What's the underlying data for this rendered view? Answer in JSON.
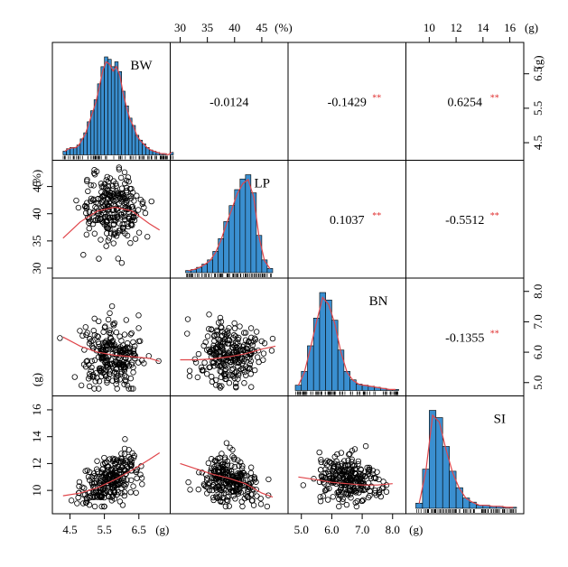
{
  "chart_data": {
    "type": "scatter-matrix",
    "variables": [
      {
        "name": "BW",
        "unit": "(g)",
        "ticks": [
          "4.5",
          "5.5",
          "6.5"
        ],
        "range": [
          4.2,
          7.2
        ],
        "hist": {
          "start": 4.3,
          "width": 0.1,
          "heights": [
            3,
            5,
            6,
            6,
            8,
            13,
            18,
            27,
            36,
            45,
            58,
            72,
            80,
            78,
            72,
            76,
            68,
            52,
            40,
            30,
            24,
            16,
            12,
            9,
            6,
            4,
            3,
            2,
            1,
            1,
            0,
            2
          ]
        }
      },
      {
        "name": "LP",
        "unit": "(%)",
        "ticks": [
          "30",
          "35",
          "40",
          "45"
        ],
        "range": [
          29.5,
          48.5
        ],
        "hist": {
          "start": 31,
          "width": 1,
          "heights": [
            2,
            3,
            5,
            8,
            12,
            20,
            32,
            48,
            63,
            78,
            88,
            92,
            75,
            35,
            12,
            4
          ]
        }
      },
      {
        "name": "BN",
        "unit": "(g)",
        "ticks": [
          "5.0",
          "6.0",
          "7.0",
          "8.0"
        ],
        "range": [
          4.8,
          8.2
        ],
        "hist": {
          "start": 4.8,
          "width": 0.2,
          "heights": [
            5,
            18,
            42,
            68,
            92,
            85,
            66,
            38,
            18,
            10,
            6,
            5,
            4,
            3,
            2,
            1,
            1
          ]
        }
      },
      {
        "name": "SI",
        "unit": "(g)",
        "ticks": [
          "10",
          "12",
          "14",
          "16"
        ],
        "range": [
          8.8,
          16.5
        ],
        "hist": {
          "start": 9.0,
          "width": 0.5,
          "heights": [
            5,
            38,
            95,
            88,
            60,
            36,
            20,
            10,
            6,
            3,
            3,
            2,
            2,
            1,
            1
          ]
        }
      }
    ],
    "unit_ticks": {
      "x": [
        "(g)",
        "",
        "(g)",
        ""
      ],
      "top": [
        "",
        "(%)",
        "",
        "(g)"
      ],
      "left": [
        "",
        "(%)",
        "(g)",
        ""
      ],
      "right": [
        "(g)",
        "",
        "",
        ""
      ]
    },
    "coefficients": [
      {
        "row": 0,
        "col": 1,
        "text": "-0.0124",
        "sig": ""
      },
      {
        "row": 0,
        "col": 2,
        "text": "-0.1429",
        "sig": "**"
      },
      {
        "row": 0,
        "col": 3,
        "text": "0.6254",
        "sig": "**"
      },
      {
        "row": 1,
        "col": 2,
        "text": "0.1037",
        "sig": "**"
      },
      {
        "row": 1,
        "col": 3,
        "text": "-0.5512",
        "sig": "**"
      },
      {
        "row": 2,
        "col": 3,
        "text": "-0.1355",
        "sig": "**"
      }
    ],
    "scatter": [
      {
        "row": 1,
        "col": 0,
        "slope": 0,
        "mean_y": 41,
        "sd_y": 3,
        "curve": [
          [
            4.3,
            35.5
          ],
          [
            4.8,
            38.5
          ],
          [
            5.3,
            40.5
          ],
          [
            5.8,
            41.2
          ],
          [
            6.3,
            40.5
          ],
          [
            6.8,
            38.2
          ],
          [
            7.1,
            37.0
          ]
        ]
      },
      {
        "row": 2,
        "col": 0,
        "slope": -0.12,
        "mean_y": 5.9,
        "sd_y": 0.55,
        "curve": [
          [
            4.3,
            6.5
          ],
          [
            4.8,
            6.2
          ],
          [
            5.3,
            6.0
          ],
          [
            5.8,
            5.9
          ],
          [
            6.3,
            5.85
          ],
          [
            6.8,
            5.8
          ],
          [
            7.1,
            5.7
          ]
        ]
      },
      {
        "row": 2,
        "col": 1,
        "slope": 0.01,
        "mean_y": 5.9,
        "sd_y": 0.55,
        "curve": [
          [
            30,
            5.75
          ],
          [
            33,
            5.75
          ],
          [
            36,
            5.78
          ],
          [
            39,
            5.85
          ],
          [
            42,
            5.95
          ],
          [
            45,
            6.1
          ],
          [
            47.5,
            6.2
          ]
        ]
      },
      {
        "row": 3,
        "col": 0,
        "slope": 1.3,
        "mean_y": 10.8,
        "sd_y": 0.8,
        "curve": [
          [
            4.3,
            9.6
          ],
          [
            4.8,
            9.8
          ],
          [
            5.3,
            10.2
          ],
          [
            5.8,
            10.8
          ],
          [
            6.3,
            11.5
          ],
          [
            6.8,
            12.3
          ],
          [
            7.1,
            12.8
          ]
        ]
      },
      {
        "row": 3,
        "col": 1,
        "slope": -0.12,
        "mean_y": 10.8,
        "sd_y": 0.8,
        "curve": [
          [
            30,
            12.0
          ],
          [
            33,
            11.6
          ],
          [
            36,
            11.2
          ],
          [
            39,
            10.9
          ],
          [
            42,
            10.5
          ],
          [
            45,
            9.8
          ],
          [
            47,
            9.5
          ]
        ]
      },
      {
        "row": 3,
        "col": 2,
        "slope": -0.25,
        "mean_y": 10.8,
        "sd_y": 0.8,
        "curve": [
          [
            4.9,
            11.0
          ],
          [
            5.5,
            10.8
          ],
          [
            6.0,
            10.6
          ],
          [
            6.5,
            10.5
          ],
          [
            7.0,
            10.4
          ],
          [
            7.5,
            10.4
          ],
          [
            8.0,
            10.5
          ]
        ]
      }
    ],
    "colors": {
      "hist_fill": "#3a8fd0",
      "density_line": "#e0454a",
      "smooth_line": "#e0454a",
      "significance": "#e03030"
    }
  }
}
